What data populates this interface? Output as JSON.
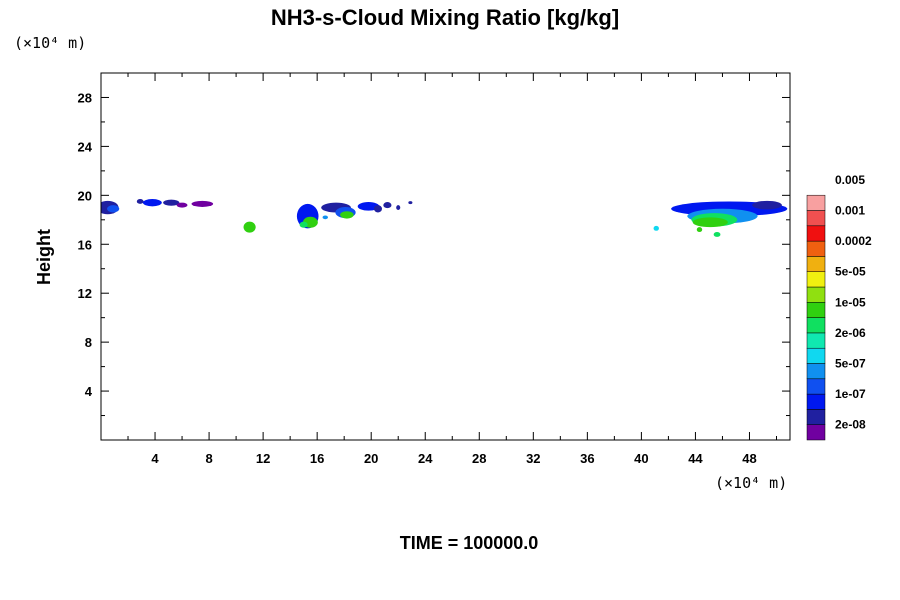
{
  "chart_data": {
    "type": "heatmap",
    "title": "NH3-s-Cloud Mixing Ratio [kg/kg]",
    "xlabel": "",
    "ylabel": "Height",
    "x_unit": "(×10⁴ m)",
    "y_unit": "(×10⁴ m)",
    "xlim": [
      0,
      51
    ],
    "ylim": [
      0,
      30
    ],
    "x_ticks": [
      4,
      8,
      12,
      16,
      20,
      24,
      28,
      32,
      36,
      40,
      44,
      48
    ],
    "y_ticks": [
      4,
      8,
      12,
      16,
      20,
      24,
      28
    ],
    "grid": false,
    "footer": "TIME = 100000.0",
    "colorbar": {
      "labels": [
        "2e-08",
        "1e-07",
        "5e-07",
        "2e-06",
        "1e-05",
        "5e-05",
        "0.0002",
        "0.001",
        "0.005"
      ],
      "colors": [
        "#7000a0",
        "#2020a0",
        "#0018f0",
        "#1050f0",
        "#1090f0",
        "#10d8f0",
        "#10e8b0",
        "#10e060",
        "#30d010",
        "#90e010",
        "#f0f010",
        "#f0b010",
        "#f06010",
        "#f01010",
        "#f05050",
        "#f8a0a0"
      ]
    },
    "cloud_patches": [
      {
        "x": 0.5,
        "y": 19.0,
        "w": 1.6,
        "h": 1.1,
        "level": 1
      },
      {
        "x": 0.9,
        "y": 18.9,
        "w": 0.9,
        "h": 0.6,
        "level": 3
      },
      {
        "x": 2.9,
        "y": 19.5,
        "w": 0.5,
        "h": 0.4,
        "level": 1
      },
      {
        "x": 3.8,
        "y": 19.4,
        "w": 1.4,
        "h": 0.6,
        "level": 2
      },
      {
        "x": 5.2,
        "y": 19.4,
        "w": 1.2,
        "h": 0.5,
        "level": 1
      },
      {
        "x": 6.0,
        "y": 19.2,
        "w": 0.8,
        "h": 0.4,
        "level": 0
      },
      {
        "x": 7.5,
        "y": 19.3,
        "w": 1.6,
        "h": 0.5,
        "level": 0
      },
      {
        "x": 11.0,
        "y": 17.4,
        "w": 0.9,
        "h": 0.9,
        "level": 8
      },
      {
        "x": 15.3,
        "y": 18.3,
        "w": 1.6,
        "h": 2.0,
        "level": 2
      },
      {
        "x": 15.5,
        "y": 17.8,
        "w": 1.1,
        "h": 0.9,
        "level": 8
      },
      {
        "x": 15.0,
        "y": 17.6,
        "w": 0.6,
        "h": 0.5,
        "level": 7
      },
      {
        "x": 16.6,
        "y": 18.2,
        "w": 0.4,
        "h": 0.3,
        "level": 4
      },
      {
        "x": 17.4,
        "y": 19.0,
        "w": 2.2,
        "h": 0.8,
        "level": 1
      },
      {
        "x": 18.1,
        "y": 18.6,
        "w": 1.5,
        "h": 0.9,
        "level": 3
      },
      {
        "x": 18.2,
        "y": 18.4,
        "w": 1.0,
        "h": 0.6,
        "level": 8
      },
      {
        "x": 19.8,
        "y": 19.1,
        "w": 1.6,
        "h": 0.7,
        "level": 2
      },
      {
        "x": 20.5,
        "y": 18.9,
        "w": 0.6,
        "h": 0.6,
        "level": 1
      },
      {
        "x": 21.2,
        "y": 19.2,
        "w": 0.6,
        "h": 0.5,
        "level": 1
      },
      {
        "x": 22.0,
        "y": 19.0,
        "w": 0.3,
        "h": 0.4,
        "level": 1
      },
      {
        "x": 22.9,
        "y": 19.4,
        "w": 0.3,
        "h": 0.2,
        "level": 1
      },
      {
        "x": 41.1,
        "y": 17.3,
        "w": 0.4,
        "h": 0.4,
        "level": 5
      },
      {
        "x": 43.0,
        "y": 18.9,
        "w": 0.5,
        "h": 0.4,
        "level": 1
      },
      {
        "x": 43.9,
        "y": 18.9,
        "w": 0.6,
        "h": 0.5,
        "level": 2
      },
      {
        "x": 44.3,
        "y": 17.2,
        "w": 0.4,
        "h": 0.4,
        "level": 8
      },
      {
        "x": 46.5,
        "y": 18.9,
        "w": 8.6,
        "h": 1.2,
        "level": 2
      },
      {
        "x": 46.0,
        "y": 18.3,
        "w": 5.2,
        "h": 1.2,
        "level": 4
      },
      {
        "x": 45.4,
        "y": 18.0,
        "w": 3.4,
        "h": 1.1,
        "level": 7
      },
      {
        "x": 45.1,
        "y": 17.8,
        "w": 2.6,
        "h": 0.8,
        "level": 8
      },
      {
        "x": 45.6,
        "y": 16.8,
        "w": 0.5,
        "h": 0.4,
        "level": 7
      },
      {
        "x": 49.3,
        "y": 19.2,
        "w": 2.2,
        "h": 0.7,
        "level": 1
      }
    ]
  }
}
